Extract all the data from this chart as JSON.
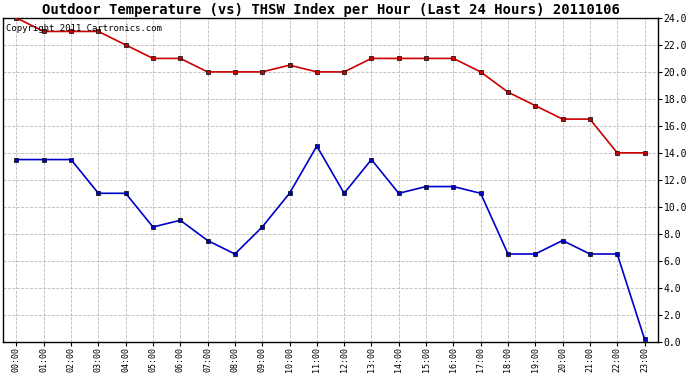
{
  "title": "Outdoor Temperature (vs) THSW Index per Hour (Last 24 Hours) 20110106",
  "copyright_text": "Copyright 2011 Cartronics.com",
  "hours": [
    "00:00",
    "01:00",
    "02:00",
    "03:00",
    "04:00",
    "05:00",
    "06:00",
    "07:00",
    "08:00",
    "09:00",
    "10:00",
    "11:00",
    "12:00",
    "13:00",
    "14:00",
    "15:00",
    "16:00",
    "17:00",
    "18:00",
    "19:00",
    "20:00",
    "21:00",
    "22:00",
    "23:00"
  ],
  "red_data": [
    24.0,
    23.0,
    23.0,
    23.0,
    22.0,
    21.0,
    21.0,
    20.0,
    20.0,
    20.0,
    20.5,
    20.0,
    20.0,
    21.0,
    21.0,
    21.0,
    21.0,
    20.0,
    18.5,
    17.5,
    16.5,
    16.5,
    14.0,
    14.0
  ],
  "blue_data": [
    13.5,
    13.5,
    13.5,
    11.0,
    11.0,
    8.5,
    9.0,
    7.5,
    6.5,
    8.5,
    11.0,
    14.5,
    11.0,
    13.5,
    11.0,
    11.5,
    11.5,
    11.0,
    6.5,
    6.5,
    7.5,
    6.5,
    6.5,
    0.2
  ],
  "ylim": [
    0.0,
    24.0
  ],
  "yticks": [
    0.0,
    2.0,
    4.0,
    6.0,
    8.0,
    10.0,
    12.0,
    14.0,
    16.0,
    18.0,
    20.0,
    22.0,
    24.0
  ],
  "red_color": "#cc0000",
  "blue_color": "#0000cc",
  "grid_color": "#bbbbbb",
  "bg_color": "#ffffff",
  "plot_bg_color": "#ffffff",
  "title_fontsize": 10,
  "copyright_fontsize": 6.5,
  "marker": "s",
  "marker_size": 2.5,
  "marker_color": "#000000",
  "linewidth": 1.2
}
